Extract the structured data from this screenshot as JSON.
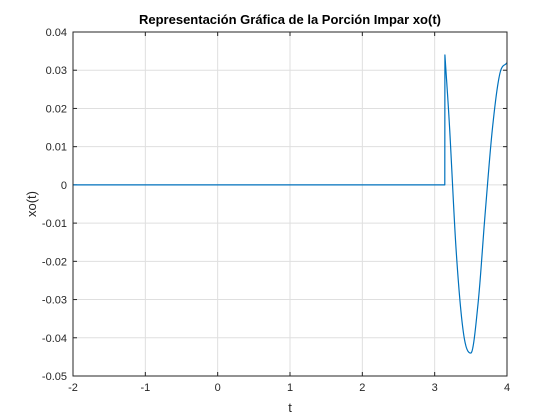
{
  "chart_data": {
    "type": "line",
    "title": "Representación Gráfica de la Porción Impar xo(t)",
    "xlabel": "t",
    "ylabel": "xo(t)",
    "xlim": [
      -2,
      4
    ],
    "ylim": [
      -0.05,
      0.04
    ],
    "xticks": [
      -2,
      -1,
      0,
      1,
      2,
      3,
      4
    ],
    "xtick_labels": [
      "-2",
      "-1",
      "0",
      "1",
      "2",
      "3",
      "4"
    ],
    "yticks": [
      -0.05,
      -0.04,
      -0.03,
      -0.02,
      -0.01,
      0,
      0.01,
      0.02,
      0.03,
      0.04
    ],
    "ytick_labels": [
      "-0.05",
      "-0.04",
      "-0.03",
      "-0.02",
      "-0.01",
      "0",
      "0.01",
      "0.02",
      "0.03",
      "0.04"
    ],
    "grid": true,
    "series": [
      {
        "name": "xo(t)",
        "color": "#0072bd",
        "x": [
          -2,
          3.14,
          3.1416,
          3.2,
          3.3,
          3.4,
          3.5,
          3.6,
          3.7,
          3.8,
          3.9,
          4.0
        ],
        "y": [
          0,
          0,
          0.034,
          0.017,
          -0.018,
          -0.039,
          -0.044,
          -0.031,
          -0.007,
          0.015,
          0.029,
          0.032
        ]
      }
    ]
  }
}
